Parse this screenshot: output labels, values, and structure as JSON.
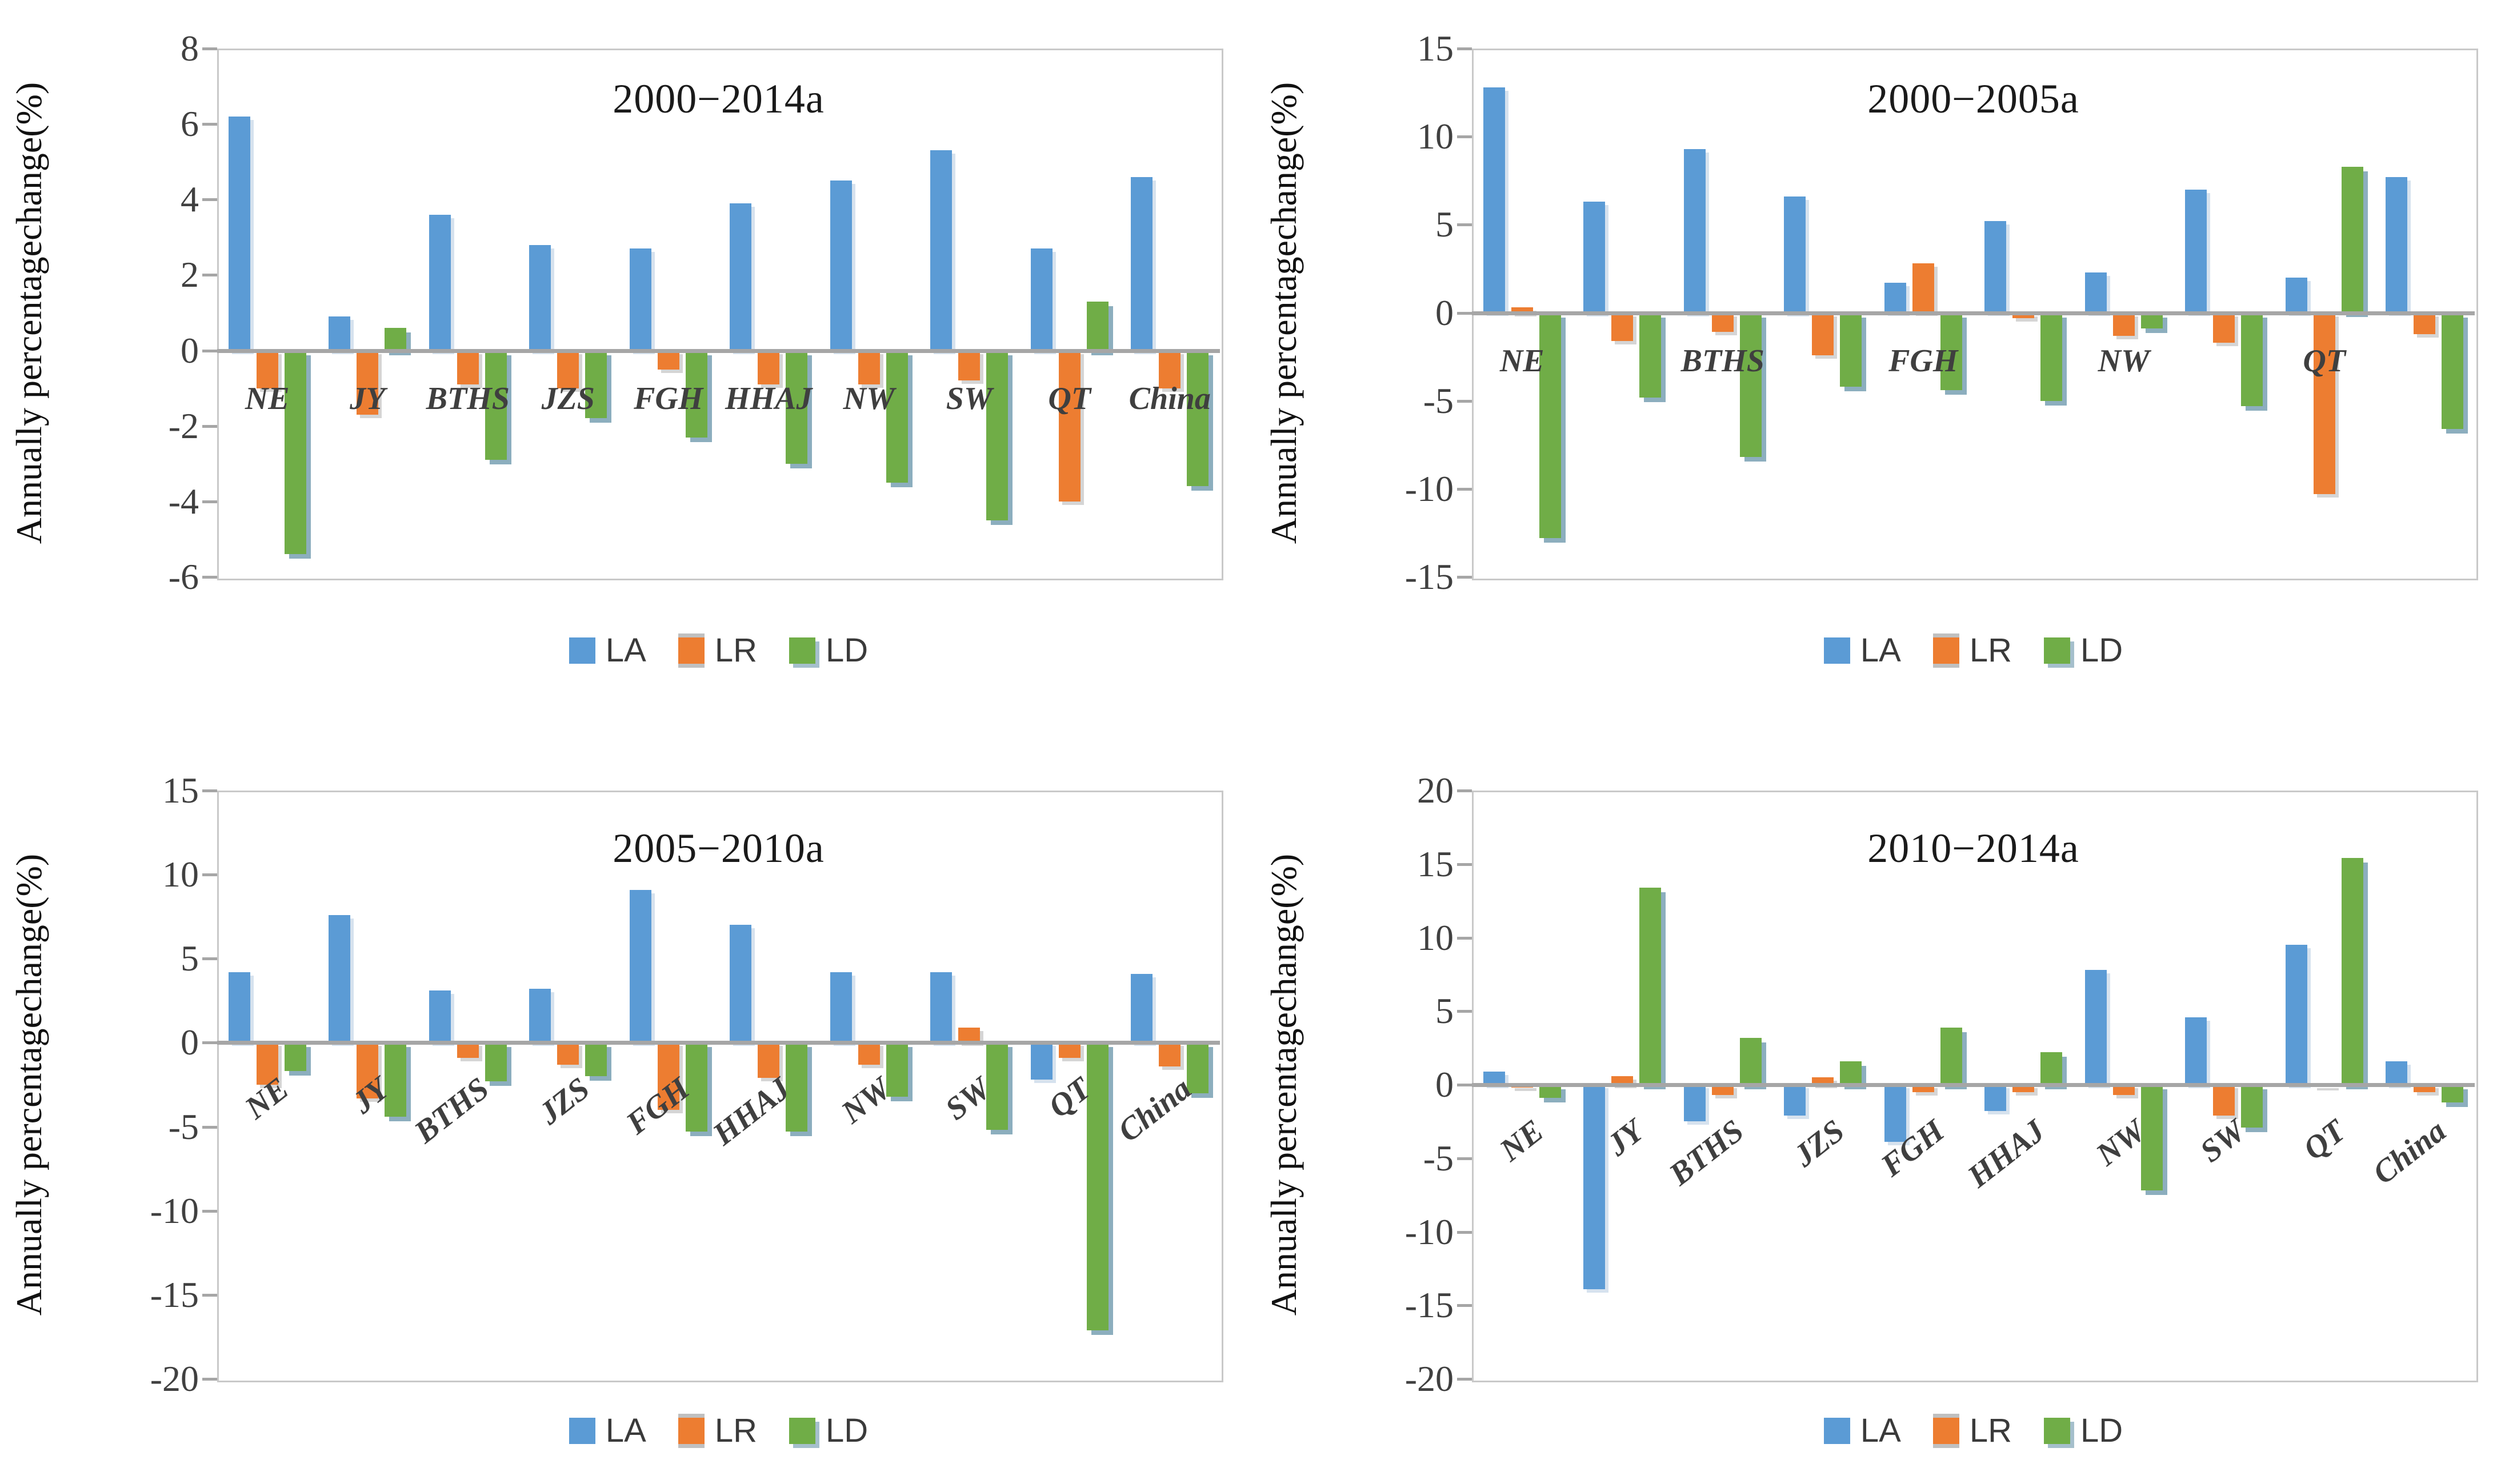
{
  "figure": {
    "y_axis_title": "Annually percentagechange(%)",
    "legend": [
      "LA",
      "LR",
      "LD"
    ],
    "colors": {
      "LA": "#5B9BD5",
      "LR": "#ED7D31",
      "LD": "#70AD47"
    },
    "categories": [
      "NE",
      "JY",
      "BTHS",
      "JZS",
      "FGH",
      "HHAJ",
      "NW",
      "SW",
      "QT",
      "China"
    ]
  },
  "chart_data": [
    {
      "type": "bar",
      "title": "2000−2014a",
      "ylabel": "Annually percentagechange(%)",
      "xlabel": "",
      "categories": [
        "NE",
        "JY",
        "BTHS",
        "JZS",
        "FGH",
        "HHAJ",
        "NW",
        "SW",
        "QT",
        "China"
      ],
      "series": [
        {
          "name": "LA",
          "color": "#5B9BD5",
          "values": [
            6.2,
            0.9,
            3.6,
            2.8,
            2.7,
            3.9,
            4.5,
            5.3,
            2.7,
            4.6
          ]
        },
        {
          "name": "LR",
          "color": "#ED7D31",
          "values": [
            -1.0,
            -1.7,
            -0.9,
            -1.0,
            -0.5,
            -0.9,
            -0.9,
            -0.8,
            -4.0,
            -1.0
          ]
        },
        {
          "name": "LD",
          "color": "#70AD47",
          "values": [
            -5.4,
            0.6,
            -2.9,
            -1.8,
            -2.3,
            -3.0,
            -3.5,
            -4.5,
            1.3,
            -3.6
          ]
        }
      ],
      "ylim": [
        -6,
        8
      ],
      "yticks": [
        8,
        6,
        4,
        2,
        0,
        -2,
        -4,
        -6
      ],
      "category_labels_shown": [
        "NE",
        "JY",
        "BTHS",
        "JZS",
        "FGH",
        "HHAJ",
        "NW",
        "SW",
        "QT",
        "China"
      ],
      "category_label_rotated": false,
      "legend": [
        "LA",
        "LR",
        "LD"
      ],
      "legend_position": "bottom",
      "gridlines": false
    },
    {
      "type": "bar",
      "title": "2000−2005a",
      "ylabel": "Annually percentagechange(%)",
      "xlabel": "",
      "categories": [
        "NE",
        "JY",
        "BTHS",
        "JZS",
        "FGH",
        "HHAJ",
        "NW",
        "SW",
        "QT",
        "China"
      ],
      "series": [
        {
          "name": "LA",
          "color": "#5B9BD5",
          "values": [
            12.8,
            6.3,
            9.3,
            6.6,
            1.7,
            5.2,
            2.3,
            7.0,
            2.0,
            7.7
          ]
        },
        {
          "name": "LR",
          "color": "#ED7D31",
          "values": [
            0.3,
            -1.6,
            -1.1,
            -2.4,
            2.8,
            -0.3,
            -1.3,
            -1.7,
            -10.3,
            -1.2
          ]
        },
        {
          "name": "LD",
          "color": "#70AD47",
          "values": [
            -12.8,
            -4.8,
            -8.2,
            -4.2,
            -4.4,
            -5.0,
            -0.9,
            -5.3,
            8.3,
            -6.6
          ]
        }
      ],
      "ylim": [
        -15,
        15
      ],
      "yticks": [
        15,
        10,
        5,
        0,
        -5,
        -10,
        -15
      ],
      "category_labels_shown": [
        "NE",
        "BTHS",
        "FGH",
        "NW",
        "QT"
      ],
      "category_label_rotated": false,
      "legend": [
        "LA",
        "LR",
        "LD"
      ],
      "legend_position": "bottom",
      "gridlines": false
    },
    {
      "type": "bar",
      "title": "2005−2010a",
      "ylabel": "Annually percentagechange(%)",
      "xlabel": "",
      "categories": [
        "NE",
        "JY",
        "BTHS",
        "JZS",
        "FGH",
        "HHAJ",
        "NW",
        "SW",
        "QT",
        "China"
      ],
      "series": [
        {
          "name": "LA",
          "color": "#5B9BD5",
          "values": [
            4.2,
            7.6,
            3.1,
            3.2,
            9.1,
            7.0,
            4.2,
            4.2,
            -2.2,
            4.1
          ]
        },
        {
          "name": "LR",
          "color": "#ED7D31",
          "values": [
            -2.5,
            -3.3,
            -0.9,
            -1.3,
            -4.0,
            -2.1,
            -1.3,
            0.9,
            -0.9,
            -1.4
          ]
        },
        {
          "name": "LD",
          "color": "#70AD47",
          "values": [
            -1.7,
            -4.4,
            -2.3,
            -2.0,
            -5.3,
            -5.3,
            -3.2,
            -5.2,
            -17.1,
            -3.0
          ]
        }
      ],
      "ylim": [
        -20,
        15
      ],
      "yticks": [
        15,
        10,
        5,
        0,
        -5,
        -10,
        -15,
        -20
      ],
      "category_labels_shown": [
        "NE",
        "JY",
        "BTHS",
        "JZS",
        "FGH",
        "HHAJ",
        "NW",
        "SW",
        "QT",
        "China"
      ],
      "category_label_rotated": true,
      "legend": [
        "LA",
        "LR",
        "LD"
      ],
      "legend_position": "bottom",
      "gridlines": false
    },
    {
      "type": "bar",
      "title": "2010−2014a",
      "ylabel": "Annually percentagechange(%)",
      "xlabel": "",
      "categories": [
        "NE",
        "JY",
        "BTHS",
        "JZS",
        "FGH",
        "HHAJ",
        "NW",
        "SW",
        "QT",
        "China"
      ],
      "series": [
        {
          "name": "LA",
          "color": "#5B9BD5",
          "values": [
            0.9,
            -13.9,
            -2.5,
            -2.1,
            -3.9,
            -1.8,
            7.8,
            4.6,
            9.5,
            1.6
          ]
        },
        {
          "name": "LR",
          "color": "#ED7D31",
          "values": [
            -0.2,
            0.6,
            -0.7,
            0.5,
            -0.5,
            -0.5,
            -0.7,
            -2.1,
            -0.1,
            -0.5
          ]
        },
        {
          "name": "LD",
          "color": "#70AD47",
          "values": [
            -0.9,
            13.4,
            3.2,
            1.6,
            3.9,
            2.2,
            -7.2,
            -2.9,
            15.4,
            -1.2
          ]
        }
      ],
      "ylim": [
        -20,
        20
      ],
      "yticks": [
        20,
        15,
        10,
        5,
        0,
        -5,
        -10,
        -15,
        -20
      ],
      "category_labels_shown": [
        "NE",
        "JY",
        "BTHS",
        "JZS",
        "FGH",
        "HHAJ",
        "NW",
        "SW",
        "QT",
        "China"
      ],
      "category_label_rotated": true,
      "legend": [
        "LA",
        "LR",
        "LD"
      ],
      "legend_position": "bottom",
      "gridlines": false
    }
  ]
}
